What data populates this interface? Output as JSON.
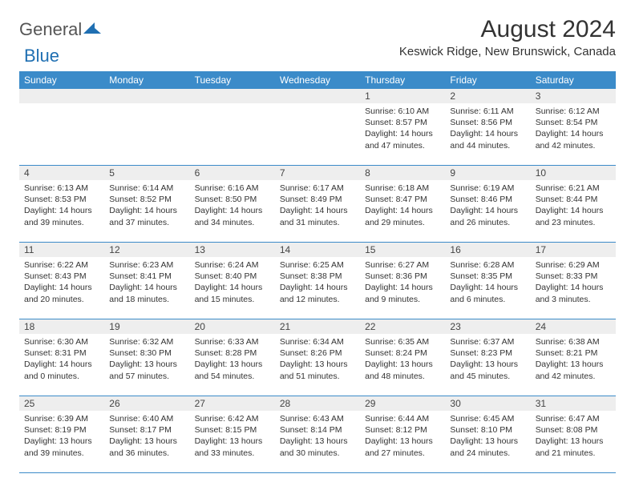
{
  "logo": {
    "word1": "General",
    "word2": "Blue"
  },
  "title": "August 2024",
  "location": "Keswick Ridge, New Brunswick, Canada",
  "colors": {
    "header_bg": "#3b8bc9",
    "header_fg": "#ffffff",
    "daynum_bg": "#eeeeee",
    "rule": "#3b8bc9",
    "logo_blue": "#1f6fb2"
  },
  "day_headers": [
    "Sunday",
    "Monday",
    "Tuesday",
    "Wednesday",
    "Thursday",
    "Friday",
    "Saturday"
  ],
  "weeks": [
    {
      "nums": [
        "",
        "",
        "",
        "",
        "1",
        "2",
        "3"
      ],
      "cells": [
        null,
        null,
        null,
        null,
        {
          "sunrise": "6:10 AM",
          "sunset": "8:57 PM",
          "daylight": "14 hours and 47 minutes."
        },
        {
          "sunrise": "6:11 AM",
          "sunset": "8:56 PM",
          "daylight": "14 hours and 44 minutes."
        },
        {
          "sunrise": "6:12 AM",
          "sunset": "8:54 PM",
          "daylight": "14 hours and 42 minutes."
        }
      ]
    },
    {
      "nums": [
        "4",
        "5",
        "6",
        "7",
        "8",
        "9",
        "10"
      ],
      "cells": [
        {
          "sunrise": "6:13 AM",
          "sunset": "8:53 PM",
          "daylight": "14 hours and 39 minutes."
        },
        {
          "sunrise": "6:14 AM",
          "sunset": "8:52 PM",
          "daylight": "14 hours and 37 minutes."
        },
        {
          "sunrise": "6:16 AM",
          "sunset": "8:50 PM",
          "daylight": "14 hours and 34 minutes."
        },
        {
          "sunrise": "6:17 AM",
          "sunset": "8:49 PM",
          "daylight": "14 hours and 31 minutes."
        },
        {
          "sunrise": "6:18 AM",
          "sunset": "8:47 PM",
          "daylight": "14 hours and 29 minutes."
        },
        {
          "sunrise": "6:19 AM",
          "sunset": "8:46 PM",
          "daylight": "14 hours and 26 minutes."
        },
        {
          "sunrise": "6:21 AM",
          "sunset": "8:44 PM",
          "daylight": "14 hours and 23 minutes."
        }
      ]
    },
    {
      "nums": [
        "11",
        "12",
        "13",
        "14",
        "15",
        "16",
        "17"
      ],
      "cells": [
        {
          "sunrise": "6:22 AM",
          "sunset": "8:43 PM",
          "daylight": "14 hours and 20 minutes."
        },
        {
          "sunrise": "6:23 AM",
          "sunset": "8:41 PM",
          "daylight": "14 hours and 18 minutes."
        },
        {
          "sunrise": "6:24 AM",
          "sunset": "8:40 PM",
          "daylight": "14 hours and 15 minutes."
        },
        {
          "sunrise": "6:25 AM",
          "sunset": "8:38 PM",
          "daylight": "14 hours and 12 minutes."
        },
        {
          "sunrise": "6:27 AM",
          "sunset": "8:36 PM",
          "daylight": "14 hours and 9 minutes."
        },
        {
          "sunrise": "6:28 AM",
          "sunset": "8:35 PM",
          "daylight": "14 hours and 6 minutes."
        },
        {
          "sunrise": "6:29 AM",
          "sunset": "8:33 PM",
          "daylight": "14 hours and 3 minutes."
        }
      ]
    },
    {
      "nums": [
        "18",
        "19",
        "20",
        "21",
        "22",
        "23",
        "24"
      ],
      "cells": [
        {
          "sunrise": "6:30 AM",
          "sunset": "8:31 PM",
          "daylight": "14 hours and 0 minutes."
        },
        {
          "sunrise": "6:32 AM",
          "sunset": "8:30 PM",
          "daylight": "13 hours and 57 minutes."
        },
        {
          "sunrise": "6:33 AM",
          "sunset": "8:28 PM",
          "daylight": "13 hours and 54 minutes."
        },
        {
          "sunrise": "6:34 AM",
          "sunset": "8:26 PM",
          "daylight": "13 hours and 51 minutes."
        },
        {
          "sunrise": "6:35 AM",
          "sunset": "8:24 PM",
          "daylight": "13 hours and 48 minutes."
        },
        {
          "sunrise": "6:37 AM",
          "sunset": "8:23 PM",
          "daylight": "13 hours and 45 minutes."
        },
        {
          "sunrise": "6:38 AM",
          "sunset": "8:21 PM",
          "daylight": "13 hours and 42 minutes."
        }
      ]
    },
    {
      "nums": [
        "25",
        "26",
        "27",
        "28",
        "29",
        "30",
        "31"
      ],
      "cells": [
        {
          "sunrise": "6:39 AM",
          "sunset": "8:19 PM",
          "daylight": "13 hours and 39 minutes."
        },
        {
          "sunrise": "6:40 AM",
          "sunset": "8:17 PM",
          "daylight": "13 hours and 36 minutes."
        },
        {
          "sunrise": "6:42 AM",
          "sunset": "8:15 PM",
          "daylight": "13 hours and 33 minutes."
        },
        {
          "sunrise": "6:43 AM",
          "sunset": "8:14 PM",
          "daylight": "13 hours and 30 minutes."
        },
        {
          "sunrise": "6:44 AM",
          "sunset": "8:12 PM",
          "daylight": "13 hours and 27 minutes."
        },
        {
          "sunrise": "6:45 AM",
          "sunset": "8:10 PM",
          "daylight": "13 hours and 24 minutes."
        },
        {
          "sunrise": "6:47 AM",
          "sunset": "8:08 PM",
          "daylight": "13 hours and 21 minutes."
        }
      ]
    }
  ],
  "labels": {
    "sunrise": "Sunrise:",
    "sunset": "Sunset:",
    "daylight": "Daylight:"
  }
}
